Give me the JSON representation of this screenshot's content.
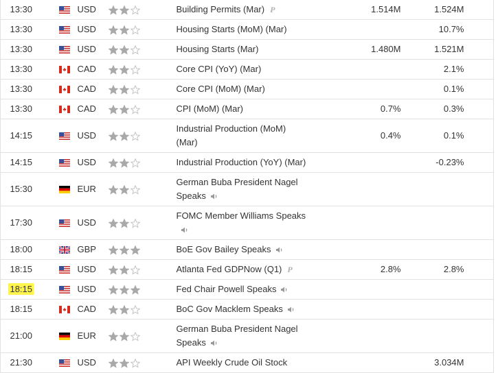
{
  "rows": [
    {
      "time": "13:30",
      "currency": "USD",
      "importance": 2,
      "event": "Building Permits (Mar)",
      "forecast": "1.514M",
      "previous": "1.524M"
    },
    {
      "time": "13:30",
      "currency": "USD",
      "importance": 2,
      "event": "Housing Starts (MoM) (Mar)",
      "forecast": null,
      "previous": "10.7%"
    },
    {
      "time": "13:30",
      "currency": "USD",
      "importance": 2,
      "event": "Housing Starts (Mar)",
      "forecast": "1.480M",
      "previous": "1.521M"
    },
    {
      "time": "13:30",
      "currency": "CAD",
      "importance": 2,
      "event": "Core CPI (YoY) (Mar)",
      "forecast": null,
      "previous": "2.1%"
    },
    {
      "time": "13:30",
      "currency": "CAD",
      "importance": 2,
      "event": "Core CPI (MoM) (Mar)",
      "forecast": null,
      "previous": "0.1%"
    },
    {
      "time": "13:30",
      "currency": "CAD",
      "importance": 2,
      "event": "CPI (MoM) (Mar)",
      "forecast": "0.7%",
      "previous": "0.3%"
    },
    {
      "time": "14:15",
      "currency": "USD",
      "importance": 2,
      "event": "Industrial Production (MoM) (Mar)",
      "forecast": "0.4%",
      "previous": "0.1%"
    },
    {
      "time": "14:15",
      "currency": "USD",
      "importance": 2,
      "event": "Industrial Production (YoY) (Mar)",
      "forecast": null,
      "previous": "-0.23%"
    },
    {
      "time": "15:30",
      "currency": "EUR",
      "importance": 2,
      "event": "German Buba President Nagel Speaks",
      "forecast": null,
      "previous": null
    },
    {
      "time": "17:30",
      "currency": "USD",
      "importance": 2,
      "event": "FOMC Member Williams Speaks",
      "forecast": null,
      "previous": null
    },
    {
      "time": "18:00",
      "currency": "GBP",
      "importance": 3,
      "event": "BoE Gov Bailey Speaks",
      "forecast": null,
      "previous": null
    },
    {
      "time": "18:15",
      "currency": "USD",
      "importance": 2,
      "event": "Atlanta Fed GDPNow (Q1)",
      "forecast": "2.8%",
      "previous": "2.8%"
    },
    {
      "time": "18:15",
      "currency": "USD",
      "importance": 3,
      "event": "Fed Chair Powell Speaks",
      "forecast": null,
      "previous": null
    },
    {
      "time": "18:15",
      "currency": "CAD",
      "importance": 2,
      "event": "BoC Gov Macklem Speaks",
      "forecast": null,
      "previous": null
    },
    {
      "time": "21:00",
      "currency": "EUR",
      "importance": 2,
      "event": "German Buba President Nagel Speaks",
      "forecast": null,
      "previous": null
    },
    {
      "time": "21:30",
      "currency": "USD",
      "importance": 2,
      "event": "API Weekly Crude Oil Stock",
      "forecast": null,
      "previous": "3.034M"
    }
  ]
}
